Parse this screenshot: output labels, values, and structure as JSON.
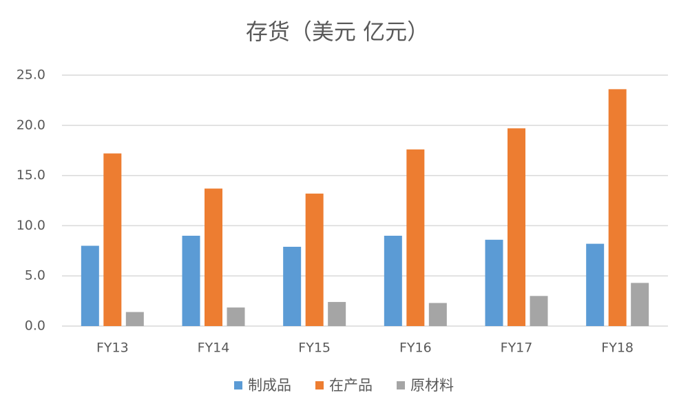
{
  "chart_data": {
    "type": "bar",
    "title": "存货（美元 亿元）",
    "categories": [
      "FY13",
      "FY14",
      "FY15",
      "FY16",
      "FY17",
      "FY18"
    ],
    "series": [
      {
        "name": "制成品",
        "color": "#5b9bd5",
        "values": [
          8.0,
          9.0,
          7.9,
          9.0,
          8.6,
          8.2
        ]
      },
      {
        "name": "在产品",
        "color": "#ed7d31",
        "values": [
          17.2,
          13.7,
          13.2,
          17.6,
          19.7,
          23.6
        ]
      },
      {
        "name": "原材料",
        "color": "#a5a5a5",
        "values": [
          1.4,
          1.85,
          2.4,
          2.3,
          3.0,
          4.3
        ]
      }
    ],
    "ylim": [
      0,
      25
    ],
    "yticks": [
      {
        "value": 0,
        "label": "0.0"
      },
      {
        "value": 5,
        "label": "5.0"
      },
      {
        "value": 10,
        "label": "10.0"
      },
      {
        "value": 15,
        "label": "15.0"
      },
      {
        "value": 20,
        "label": "20.0"
      },
      {
        "value": 25,
        "label": "25.0"
      }
    ],
    "grid": true,
    "legend": "bottom"
  }
}
